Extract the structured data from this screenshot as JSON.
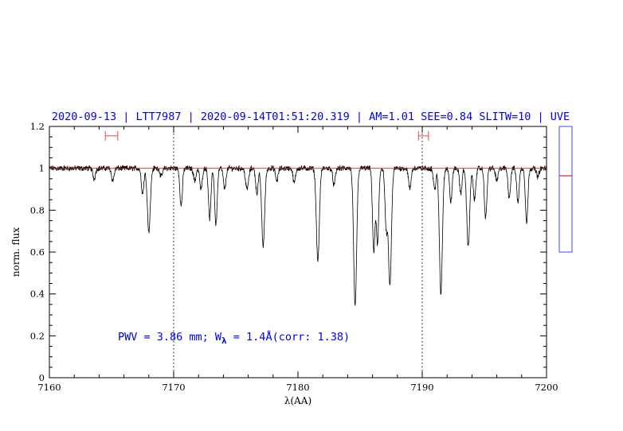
{
  "header": {
    "title": "2020-09-13 | LTT7987 | 2020-09-14T01:51:20.319 | AM=1.01 SEE=0.84 SLITW=10 | UVE"
  },
  "annotation": {
    "pwv_prefix": "PWV = 3.86 mm; W",
    "w_sub": "λ",
    "pwv_suffix": " = 1.4Å(corr: 1.38)"
  },
  "colors": {
    "title": "#0000ee",
    "spectrum": "#000000",
    "continuum": "#dd2222",
    "marker": "#ee4444",
    "axes": "#000000",
    "side_box": "#4444ff"
  },
  "chart_data": {
    "type": "line",
    "xlabel": "λ(AA)",
    "ylabel": "norm. flux",
    "xlim": [
      7160,
      7200
    ],
    "ylim": [
      0,
      1.2
    ],
    "xticks": [
      7160,
      7170,
      7180,
      7190,
      7200
    ],
    "xtick_labels": [
      "7160",
      "7170",
      "7180",
      "7190",
      "7200"
    ],
    "yticks": [
      0,
      0.2,
      0.4,
      0.6,
      0.8,
      1,
      1.2
    ],
    "ytick_labels": [
      "0",
      "0.2",
      "0.4",
      "0.6",
      "0.8",
      "1",
      "1.2"
    ],
    "vlines": [
      7170,
      7190
    ],
    "continuum_y": 1.0,
    "range_markers": [
      {
        "x0": 7164.5,
        "x1": 7165.5,
        "y": 1.155
      },
      {
        "x0": 7189.7,
        "x1": 7190.5,
        "y": 1.155
      }
    ],
    "absorption_lines": [
      {
        "x": 7163.6,
        "depth": 0.05,
        "width": 0.1
      },
      {
        "x": 7165.1,
        "depth": 0.06,
        "width": 0.1
      },
      {
        "x": 7167.5,
        "depth": 0.12,
        "width": 0.1
      },
      {
        "x": 7168.0,
        "depth": 0.3,
        "width": 0.12
      },
      {
        "x": 7169.0,
        "depth": 0.04,
        "width": 0.1
      },
      {
        "x": 7170.6,
        "depth": 0.18,
        "width": 0.1
      },
      {
        "x": 7171.7,
        "depth": 0.06,
        "width": 0.1
      },
      {
        "x": 7172.2,
        "depth": 0.1,
        "width": 0.1
      },
      {
        "x": 7172.9,
        "depth": 0.24,
        "width": 0.1
      },
      {
        "x": 7173.4,
        "depth": 0.27,
        "width": 0.1
      },
      {
        "x": 7174.1,
        "depth": 0.1,
        "width": 0.1
      },
      {
        "x": 7175.9,
        "depth": 0.1,
        "width": 0.12
      },
      {
        "x": 7176.7,
        "depth": 0.12,
        "width": 0.1
      },
      {
        "x": 7177.2,
        "depth": 0.37,
        "width": 0.12
      },
      {
        "x": 7178.3,
        "depth": 0.06,
        "width": 0.1
      },
      {
        "x": 7179.7,
        "depth": 0.07,
        "width": 0.1
      },
      {
        "x": 7181.6,
        "depth": 0.44,
        "width": 0.12
      },
      {
        "x": 7182.9,
        "depth": 0.08,
        "width": 0.1
      },
      {
        "x": 7184.6,
        "depth": 0.66,
        "width": 0.12
      },
      {
        "x": 7186.1,
        "depth": 0.4,
        "width": 0.1
      },
      {
        "x": 7186.4,
        "depth": 0.36,
        "width": 0.1
      },
      {
        "x": 7187.1,
        "depth": 0.28,
        "width": 0.1
      },
      {
        "x": 7187.4,
        "depth": 0.56,
        "width": 0.12
      },
      {
        "x": 7189.0,
        "depth": 0.1,
        "width": 0.1
      },
      {
        "x": 7191.0,
        "depth": 0.1,
        "width": 0.1
      },
      {
        "x": 7191.5,
        "depth": 0.6,
        "width": 0.12
      },
      {
        "x": 7192.3,
        "depth": 0.16,
        "width": 0.1
      },
      {
        "x": 7193.1,
        "depth": 0.12,
        "width": 0.1
      },
      {
        "x": 7193.7,
        "depth": 0.37,
        "width": 0.12
      },
      {
        "x": 7194.2,
        "depth": 0.15,
        "width": 0.1
      },
      {
        "x": 7195.1,
        "depth": 0.24,
        "width": 0.1
      },
      {
        "x": 7196.0,
        "depth": 0.06,
        "width": 0.1
      },
      {
        "x": 7197.0,
        "depth": 0.14,
        "width": 0.1
      },
      {
        "x": 7197.7,
        "depth": 0.16,
        "width": 0.1
      },
      {
        "x": 7198.4,
        "depth": 0.26,
        "width": 0.1
      },
      {
        "x": 7199.3,
        "depth": 0.04,
        "width": 0.1
      }
    ],
    "noise_amplitude": 0.01,
    "grid": false
  }
}
